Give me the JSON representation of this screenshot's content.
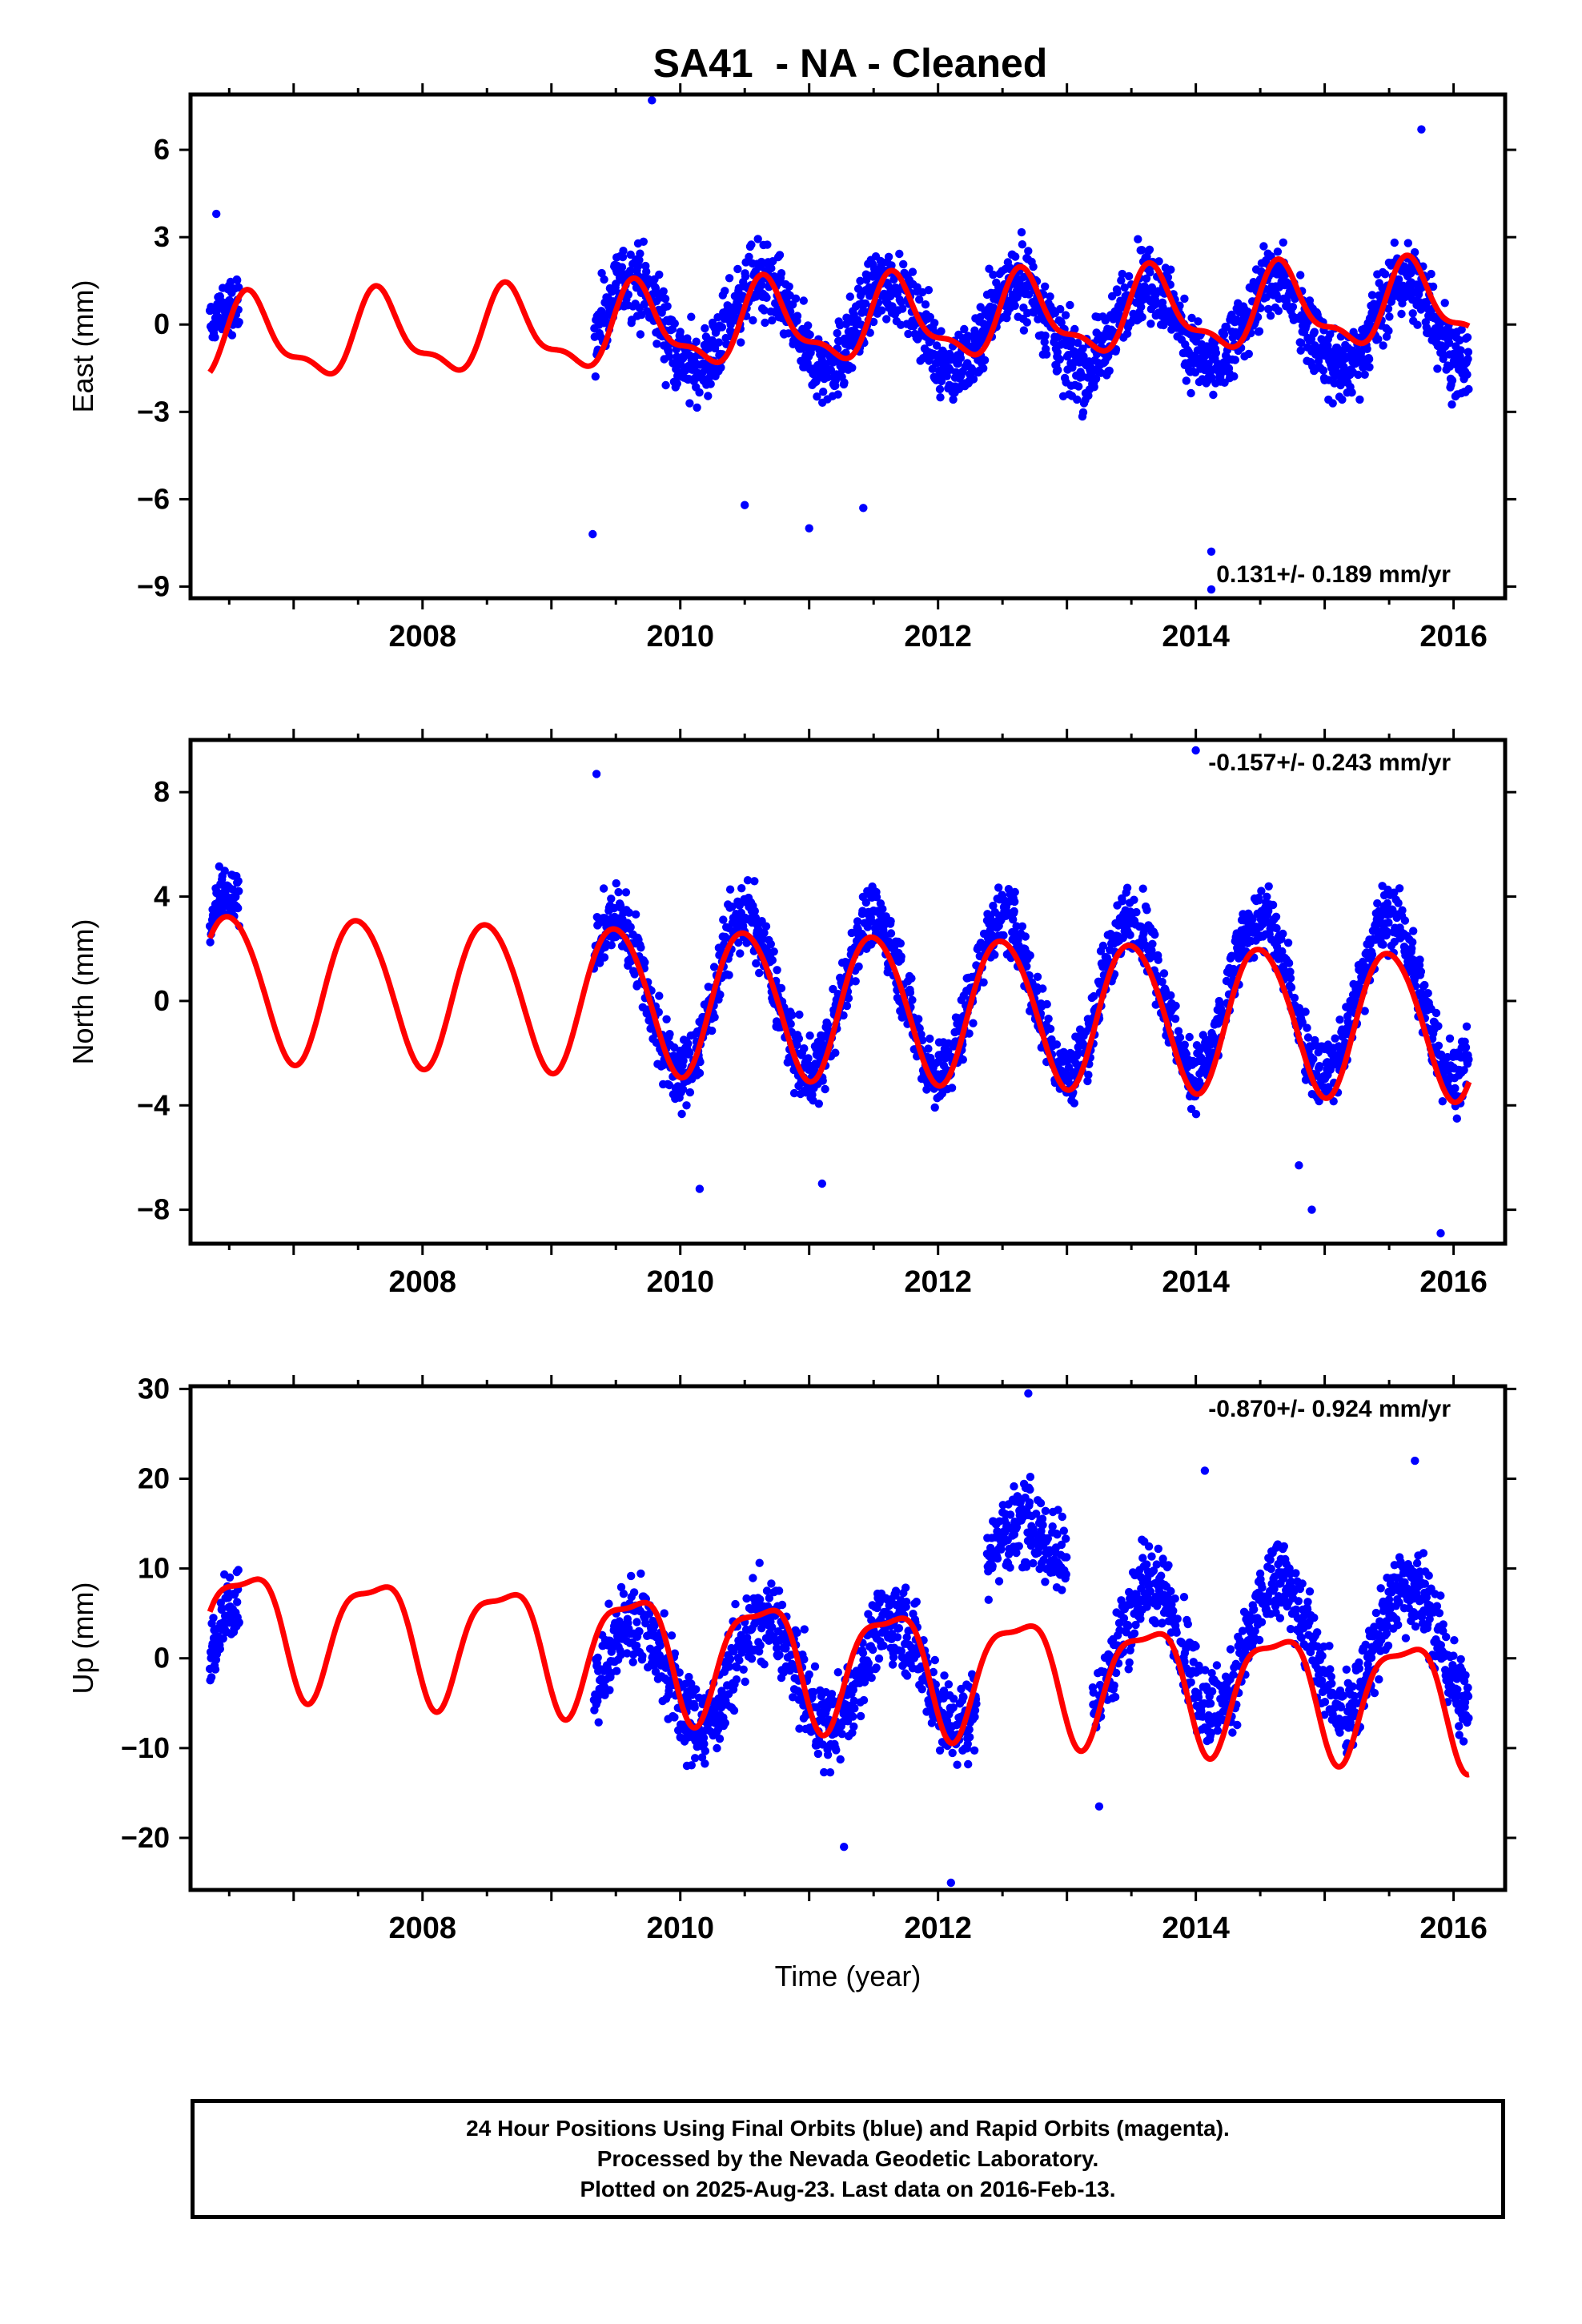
{
  "title": "SA41  - NA - Cleaned",
  "xlabel": "Time (year)",
  "footer": [
    "24 Hour Positions Using Final Orbits (blue) and Rapid Orbits (magenta).",
    "Processed by the Nevada Geodetic Laboratory.",
    "Plotted on 2025-Aug-23. Last data on 2016-Feb-13."
  ],
  "colors": {
    "points": "#0000ff",
    "model": "#ff0000",
    "axis": "#000000"
  },
  "chart_data": [
    {
      "type": "scatter",
      "ylabel": "East (mm)",
      "rate_text": "0.131+/- 0.189 mm/yr",
      "xlim": [
        2006.2,
        2016.4
      ],
      "ylim": [
        -9.4,
        7.9
      ],
      "yticks": [
        -9,
        -6,
        -3,
        0,
        3,
        6
      ],
      "xticks": [
        2008,
        2010,
        2012,
        2014,
        2016
      ],
      "series": [
        {
          "role": "daily positions (points)",
          "segments": [
            {
              "x_range": [
                2006.35,
                2006.58
              ],
              "mean": -0.3,
              "amplitude": 0.9,
              "phase": 0.55,
              "noise": 0.8
            },
            {
              "x_range": [
                2009.33,
                2016.12
              ],
              "mean": 0.0,
              "amplitude": 1.5,
              "phase": 0.62,
              "noise": 1.1
            }
          ],
          "outliers": [
            [
              2009.78,
              7.7
            ],
            [
              2009.32,
              -7.2
            ],
            [
              2011.0,
              -7.0
            ],
            [
              2014.12,
              -7.8
            ],
            [
              2014.12,
              -9.1
            ],
            [
              2010.5,
              -6.2
            ],
            [
              2011.42,
              -6.3
            ],
            [
              2015.75,
              6.7
            ],
            [
              2006.4,
              3.8
            ]
          ]
        },
        {
          "role": "model (line)",
          "x_range": [
            2006.35,
            2016.12
          ],
          "trend": {
            "t0": 2006.35,
            "offset": -0.6,
            "rate": 0.131
          },
          "annual": {
            "amplitude": 1.3,
            "peak_year_fraction": 0.67
          },
          "semiannual": {
            "amplitude": 0.5,
            "peak_year_fraction": 0.62
          }
        }
      ]
    },
    {
      "type": "scatter",
      "ylabel": "North (mm)",
      "rate_text": "-0.157+/- 0.243 mm/yr",
      "xlim": [
        2006.2,
        2016.4
      ],
      "ylim": [
        -9.3,
        10.0
      ],
      "yticks": [
        -8,
        -4,
        0,
        4,
        8
      ],
      "xticks": [
        2008,
        2010,
        2012,
        2014,
        2016
      ],
      "series": [
        {
          "role": "daily positions (points)",
          "segments": [
            {
              "x_range": [
                2006.35,
                2006.58
              ],
              "mean": 1.2,
              "amplitude": 3.0,
              "phase": 0.5,
              "noise": 0.9
            },
            {
              "x_range": [
                2009.33,
                2016.12
              ],
              "mean": 0.2,
              "amplitude": 3.0,
              "phase": 0.5,
              "noise": 1.1
            }
          ],
          "outliers": [
            [
              2009.35,
              8.7
            ],
            [
              2010.15,
              -7.2
            ],
            [
              2011.1,
              -7.0
            ],
            [
              2014.0,
              9.6
            ],
            [
              2014.9,
              -8.0
            ],
            [
              2015.9,
              -8.9
            ],
            [
              2014.8,
              -6.3
            ]
          ]
        },
        {
          "role": "model (line)",
          "x_range": [
            2006.35,
            2016.12
          ],
          "trend": {
            "t0": 2006.35,
            "offset": 0.6,
            "rate": -0.157
          },
          "annual": {
            "amplitude": 2.8,
            "peak_year_fraction": 0.5
          },
          "semiannual": {
            "amplitude": 0.2,
            "peak_year_fraction": 0.3
          }
        }
      ]
    },
    {
      "type": "scatter",
      "ylabel": "Up (mm)",
      "rate_text": "-0.870+/- 0.924 mm/yr",
      "xlim": [
        2006.2,
        2016.4
      ],
      "ylim": [
        -25.8,
        30.3
      ],
      "yticks": [
        -20,
        -10,
        0,
        10,
        20,
        30
      ],
      "xticks": [
        2008,
        2010,
        2012,
        2014,
        2016
      ],
      "series": [
        {
          "role": "daily positions (points)",
          "segments": [
            {
              "x_range": [
                2006.35,
                2006.58
              ],
              "mean": 2.0,
              "amplitude": 6.0,
              "phase": 0.65,
              "noise": 3.5
            },
            {
              "x_range": [
                2009.33,
                2012.3
              ],
              "mean": -1.5,
              "amplitude": 6.0,
              "phase": 0.65,
              "noise": 4.0
            },
            {
              "x_range": [
                2012.38,
                2013.0
              ],
              "mean": 12.0,
              "amplitude": 3.0,
              "phase": 0.65,
              "noise": 4.0
            },
            {
              "x_range": [
                2013.2,
                2016.12
              ],
              "mean": 1.5,
              "amplitude": 7.0,
              "phase": 0.65,
              "noise": 4.0
            }
          ],
          "outliers": [
            [
              2012.7,
              29.5
            ],
            [
              2012.1,
              -25.0
            ],
            [
              2011.27,
              -21.0
            ],
            [
              2014.07,
              20.9
            ],
            [
              2015.7,
              22.0
            ],
            [
              2013.25,
              -16.5
            ]
          ]
        },
        {
          "role": "model (line)",
          "x_range": [
            2006.35,
            2016.12
          ],
          "trend": {
            "t0": 2006.35,
            "offset": 4.0,
            "rate": -0.87
          },
          "annual": {
            "amplitude": 6.5,
            "peak_year_fraction": 0.62
          },
          "semiannual": {
            "amplitude": 2.0,
            "peak_year_fraction": 0.35
          }
        }
      ]
    }
  ]
}
